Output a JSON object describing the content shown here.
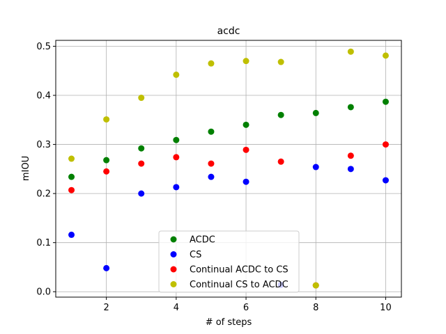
{
  "chart_data": {
    "type": "scatter",
    "title": "acdc",
    "xlabel": "# of steps",
    "ylabel": "mIOU",
    "xlim": [
      0.55,
      10.45
    ],
    "ylim": [
      -0.011,
      0.512
    ],
    "xticks": [
      2,
      4,
      6,
      8,
      10
    ],
    "yticks": [
      0.0,
      0.1,
      0.2,
      0.3,
      0.4,
      0.5
    ],
    "xtick_labels": [
      "2",
      "4",
      "6",
      "8",
      "10"
    ],
    "ytick_labels": [
      "0.0",
      "0.1",
      "0.2",
      "0.3",
      "0.4",
      "0.5"
    ],
    "grid": true,
    "legend_position": "lower center",
    "series": [
      {
        "name": "ACDC",
        "color": "#008000",
        "x": [
          1,
          2,
          3,
          4,
          5,
          6,
          7,
          8,
          9,
          10
        ],
        "y": [
          0.234,
          0.268,
          0.292,
          0.309,
          0.326,
          0.34,
          0.36,
          0.364,
          0.376,
          0.387
        ]
      },
      {
        "name": "CS",
        "color": "#0000ff",
        "x": [
          1,
          2,
          3,
          4,
          5,
          6,
          7,
          8,
          9,
          10
        ],
        "y": [
          0.116,
          0.048,
          0.2,
          0.213,
          0.234,
          0.224,
          0.014,
          0.254,
          0.25,
          0.227
        ]
      },
      {
        "name": "Continual ACDC to CS",
        "color": "#ff0000",
        "x": [
          1,
          2,
          3,
          4,
          5,
          6,
          7,
          8,
          9,
          10
        ],
        "y": [
          0.207,
          0.245,
          0.261,
          0.274,
          0.261,
          0.289,
          0.265,
          0.013,
          0.277,
          0.3
        ]
      },
      {
        "name": "Continual CS to ACDC",
        "color": "#bfbf00",
        "x": [
          1,
          2,
          3,
          4,
          5,
          6,
          7,
          8,
          9,
          10
        ],
        "y": [
          0.271,
          0.351,
          0.395,
          0.442,
          0.465,
          0.47,
          0.468,
          0.013,
          0.489,
          0.481
        ]
      }
    ]
  }
}
